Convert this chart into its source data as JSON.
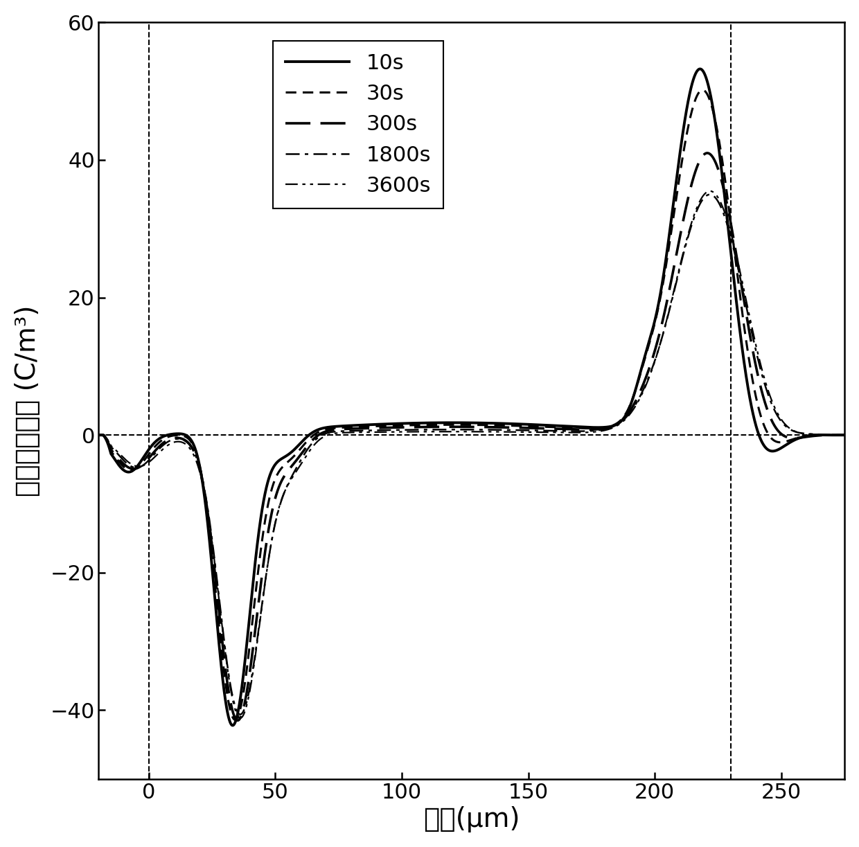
{
  "xlabel": "厚度(μm)",
  "ylabel": "空间电荷密度 (C/m³)",
  "xlim": [
    -20,
    275
  ],
  "ylim": [
    -50,
    60
  ],
  "yticks": [
    -40,
    -20,
    0,
    20,
    40,
    60
  ],
  "xticks": [
    0,
    50,
    100,
    150,
    200,
    250
  ],
  "vline1": 0,
  "vline2": 230,
  "legend_labels": [
    "10s",
    "30s",
    "300s",
    "1800s",
    "3600s"
  ],
  "background_color": "#ffffff",
  "fontsize_labels": 28,
  "fontsize_ticks": 22,
  "fontsize_legend": 22
}
